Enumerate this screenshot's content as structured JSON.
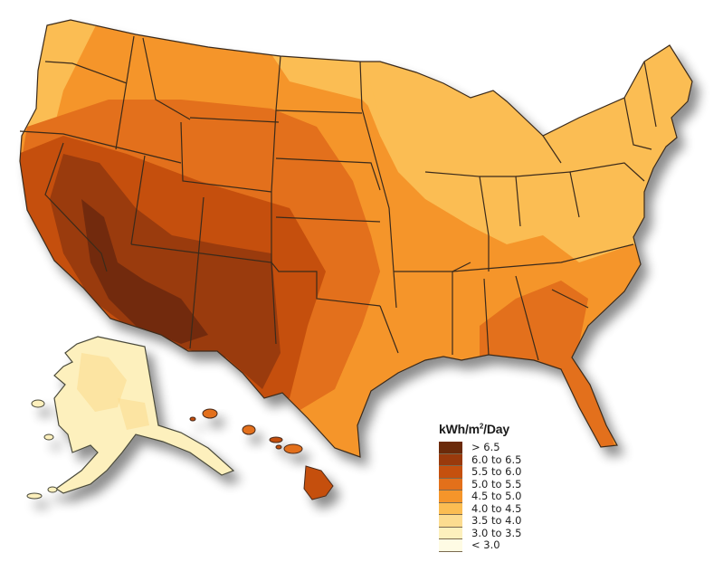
{
  "title_units": "kWh/m",
  "title_units_sup": "2",
  "title_units_suffix": "/Day",
  "legend": {
    "items": [
      {
        "label": "> 6.5",
        "color": "#6b2a0a"
      },
      {
        "label": "6.0 to 6.5",
        "color": "#9a3a0c"
      },
      {
        "label": "5.5 to 6.0",
        "color": "#c5500e"
      },
      {
        "label": "5.0 to 5.5",
        "color": "#e3701a"
      },
      {
        "label": "4.5 to 5.0",
        "color": "#f5952a"
      },
      {
        "label": "4.0 to 4.5",
        "color": "#fbbd52"
      },
      {
        "label": "3.5 to 4.0",
        "color": "#fcdc90"
      },
      {
        "label": "3.0 to 3.5",
        "color": "#fdf0bd"
      },
      {
        "label": "< 3.0",
        "color": "#fefbe4"
      }
    ]
  },
  "map": {
    "subject": "Annual average solar resource, United States",
    "regions": [
      {
        "name": "Southwest desert (AZ, NM, S. NV, SE CA)",
        "class": "> 6.5 / 6.0 to 6.5"
      },
      {
        "name": "Intermountain West / Great Plains west",
        "class": "5.5 to 6.0 / 5.0 to 5.5"
      },
      {
        "name": "Southeast / South Central",
        "class": "4.5 to 5.0 / 5.0 to 5.5"
      },
      {
        "name": "Midwest / Northeast",
        "class": "4.0 to 4.5"
      },
      {
        "name": "Pacific Northwest coast",
        "class": "4.0 to 4.5"
      },
      {
        "name": "Alaska",
        "class": "3.0 to 3.5 / < 3.0"
      },
      {
        "name": "Hawaii",
        "class": "5.0 to 5.5 / 5.5 to 6.0"
      }
    ]
  }
}
